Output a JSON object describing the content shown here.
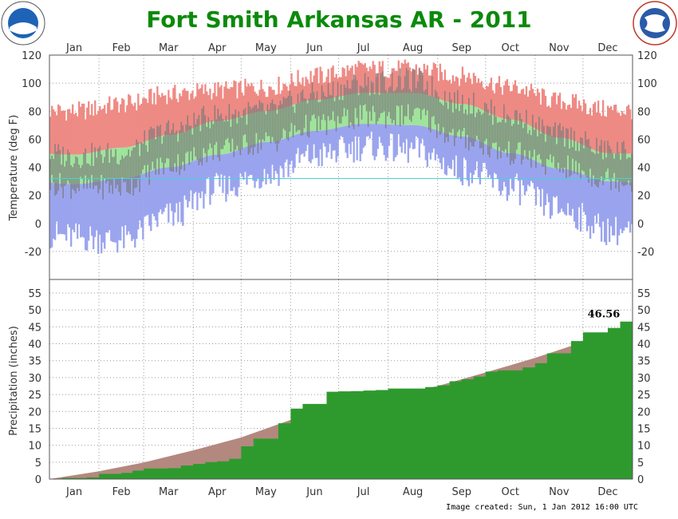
{
  "title": "Fort Smith Arkansas AR - 2011",
  "footer": "Image created: Sun, 1 Jan 2012 16:00 UTC",
  "logos": {
    "left": "noaa-logo",
    "right": "national-weather-service-logo"
  },
  "colors": {
    "title": "#0b8a0b",
    "record_high": "#ee8a84",
    "normal_range": "#9ee49a",
    "record_low": "#9aa4ee",
    "observed": "#7a7a7a",
    "normal_precip": "#b3887f",
    "observed_precip": "#2e9a2e",
    "freezing_line": "#46d3d9",
    "grid": "#999999"
  },
  "chart_data": [
    {
      "type": "bar",
      "name": "temperature",
      "ylabel": "Temperature (deg F)",
      "months": [
        "Jan",
        "Feb",
        "Mar",
        "Apr",
        "May",
        "Jun",
        "Jul",
        "Aug",
        "Sep",
        "Oct",
        "Nov",
        "Dec"
      ],
      "yticks": [
        120,
        100,
        80,
        60,
        40,
        20,
        0,
        -20
      ],
      "ylim": [
        -40,
        120
      ],
      "freezing_line": 32,
      "grid": true,
      "normals_monthly": {
        "high": [
          49,
          54,
          63,
          73,
          80,
          88,
          93,
          93,
          85,
          74,
          61,
          50
        ],
        "low": [
          28,
          32,
          40,
          49,
          58,
          66,
          71,
          70,
          62,
          50,
          39,
          30
        ]
      },
      "records_monthly": {
        "high": [
          80,
          85,
          92,
          95,
          97,
          105,
          110,
          110,
          105,
          97,
          87,
          81
        ],
        "low": [
          -10,
          -12,
          5,
          25,
          35,
          48,
          55,
          52,
          38,
          25,
          10,
          -5
        ]
      },
      "observed_monthly": {
        "high": [
          48,
          50,
          66,
          77,
          80,
          92,
          100,
          102,
          86,
          76,
          63,
          52
        ],
        "low": [
          26,
          26,
          42,
          52,
          58,
          70,
          76,
          77,
          60,
          50,
          40,
          32
        ]
      }
    },
    {
      "type": "area",
      "name": "precipitation",
      "ylabel": "Precipitation (inches)",
      "months": [
        "Jan",
        "Feb",
        "Mar",
        "Apr",
        "May",
        "Jun",
        "Jul",
        "Aug",
        "Sep",
        "Oct",
        "Nov",
        "Dec"
      ],
      "yticks": [
        0,
        5,
        10,
        15,
        20,
        25,
        30,
        35,
        40,
        45,
        50,
        55
      ],
      "ylim": [
        0,
        59
      ],
      "grid": true,
      "normal_cumulative": [
        0,
        2.3,
        4.9,
        8.5,
        12.3,
        17.5,
        21.4,
        24.5,
        27.5,
        31.5,
        35.8,
        40.5,
        44.3
      ],
      "observed_cumulative": [
        0,
        0.5,
        2.5,
        4.0,
        6.0,
        16.5,
        25.8,
        26.3,
        27.2,
        30.3,
        33.0,
        40.8,
        46.56
      ],
      "annotation": "46.56"
    }
  ]
}
